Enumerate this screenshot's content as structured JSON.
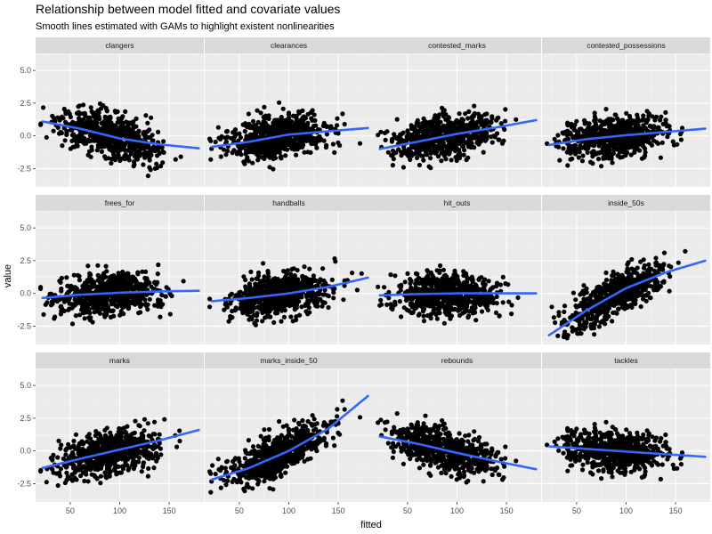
{
  "chart_data": {
    "type": "scatter",
    "title": "Relationship between model fitted and covariate values",
    "subtitle": "Smooth lines estimated with GAMs to highlight existent nonlinearities",
    "xlabel": "fitted",
    "ylabel": "value",
    "xlim": [
      15,
      185
    ],
    "ylim": [
      -3.9,
      6.3
    ],
    "x_ticks": [
      50,
      100,
      150
    ],
    "y_ticks": [
      -2.5,
      0.0,
      2.5,
      5.0
    ],
    "x_tick_labels": [
      "50",
      "100",
      "150"
    ],
    "y_tick_labels": [
      "-2.5",
      "0.0",
      "2.5",
      "5.0"
    ],
    "grid": true,
    "colors": {
      "points": "#000000",
      "smooth": "#3366FF",
      "panel_bg": "#EBEBEB",
      "strip_bg": "#D9D9D9",
      "grid": "#FFFFFF"
    },
    "facets": [
      {
        "name": "clangers",
        "smooth": [
          [
            22,
            1.1
          ],
          [
            60,
            0.55
          ],
          [
            100,
            -0.2
          ],
          [
            140,
            -0.65
          ],
          [
            180,
            -0.95
          ]
        ]
      },
      {
        "name": "clearances",
        "smooth": [
          [
            22,
            -0.85
          ],
          [
            60,
            -0.45
          ],
          [
            100,
            0.1
          ],
          [
            140,
            0.35
          ],
          [
            180,
            0.6
          ]
        ]
      },
      {
        "name": "contested_marks",
        "smooth": [
          [
            22,
            -1.0
          ],
          [
            60,
            -0.45
          ],
          [
            100,
            0.15
          ],
          [
            140,
            0.65
          ],
          [
            180,
            1.2
          ]
        ]
      },
      {
        "name": "contested_possessions",
        "smooth": [
          [
            22,
            -0.7
          ],
          [
            60,
            -0.25
          ],
          [
            100,
            0.05
          ],
          [
            140,
            0.3
          ],
          [
            180,
            0.55
          ]
        ]
      },
      {
        "name": "frees_for",
        "smooth": [
          [
            22,
            -0.35
          ],
          [
            60,
            -0.1
          ],
          [
            100,
            0.05
          ],
          [
            140,
            0.15
          ],
          [
            180,
            0.2
          ]
        ]
      },
      {
        "name": "handballs",
        "smooth": [
          [
            22,
            -0.6
          ],
          [
            60,
            -0.35
          ],
          [
            100,
            0.0
          ],
          [
            140,
            0.5
          ],
          [
            180,
            1.2
          ]
        ]
      },
      {
        "name": "hit_outs",
        "smooth": [
          [
            22,
            -0.15
          ],
          [
            60,
            -0.05
          ],
          [
            100,
            0.0
          ],
          [
            140,
            0.0
          ],
          [
            180,
            0.0
          ]
        ]
      },
      {
        "name": "inside_50s",
        "smooth": [
          [
            22,
            -3.2
          ],
          [
            60,
            -1.3
          ],
          [
            100,
            0.4
          ],
          [
            140,
            1.6
          ],
          [
            180,
            2.5
          ]
        ]
      },
      {
        "name": "marks",
        "smooth": [
          [
            22,
            -1.3
          ],
          [
            60,
            -0.6
          ],
          [
            100,
            0.1
          ],
          [
            140,
            0.8
          ],
          [
            180,
            1.6
          ]
        ]
      },
      {
        "name": "marks_inside_50",
        "smooth": [
          [
            22,
            -2.2
          ],
          [
            60,
            -1.3
          ],
          [
            100,
            0.0
          ],
          [
            140,
            1.7
          ],
          [
            180,
            4.2
          ]
        ]
      },
      {
        "name": "rebounds",
        "smooth": [
          [
            22,
            1.1
          ],
          [
            60,
            0.55
          ],
          [
            100,
            -0.15
          ],
          [
            140,
            -0.8
          ],
          [
            180,
            -1.4
          ]
        ]
      },
      {
        "name": "tackles",
        "smooth": [
          [
            22,
            0.35
          ],
          [
            60,
            0.15
          ],
          [
            100,
            -0.05
          ],
          [
            140,
            -0.25
          ],
          [
            180,
            -0.45
          ]
        ]
      }
    ]
  }
}
